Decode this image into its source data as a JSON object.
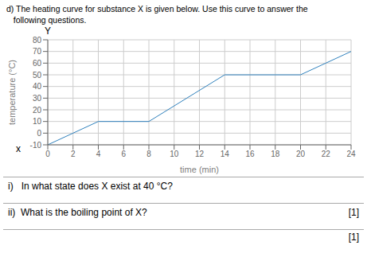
{
  "chart_data": {
    "type": "line",
    "title": "d) The heating curve for substance X is given below. Use this curve to answer the",
    "subtitle": "   following questions.",
    "x": [
      0,
      4,
      8,
      14,
      20,
      24
    ],
    "values": [
      -10,
      10,
      10,
      50,
      50,
      70
    ],
    "xlabel": "time (min)",
    "ylabel": "temperature (°C)",
    "xlim": [
      0,
      24
    ],
    "ylim": [
      -10,
      80
    ],
    "xticks": [
      0,
      2,
      4,
      6,
      8,
      10,
      12,
      14,
      16,
      18,
      20,
      22,
      24
    ],
    "yticks": [
      -10,
      0,
      10,
      20,
      30,
      40,
      50,
      60,
      70,
      80
    ],
    "grid": true,
    "annotations": [
      "Y",
      "x",
      "i)   In what state does X exist at 40 °C?",
      "ii)  What is the boiling point of X?",
      "[1]",
      "[1]"
    ]
  }
}
